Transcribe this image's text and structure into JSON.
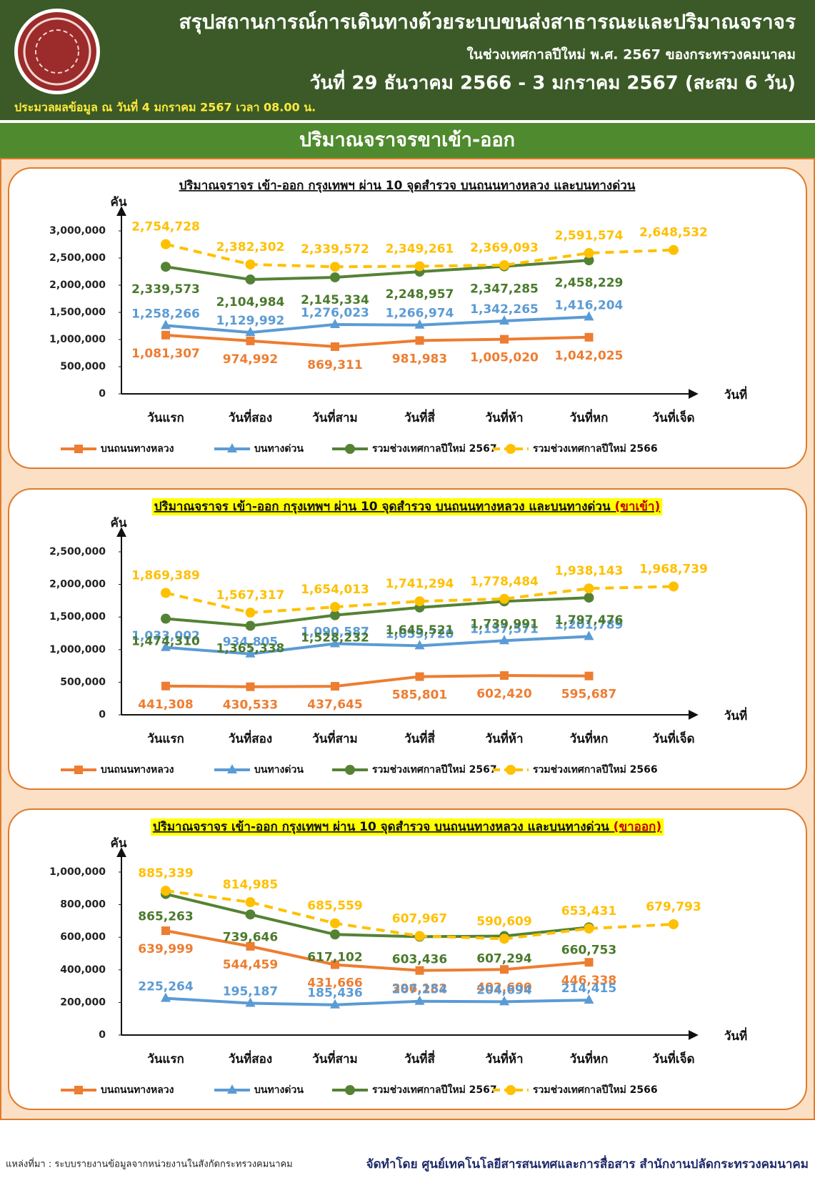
{
  "header": {
    "title": "สรุปสถานการณ์การเดินทางด้วยระบบขนส่งสาธารณะและปริมาณจราจร",
    "subtitle": "ในช่วงเทศกาลปีใหม่ พ.ศ. 2567 ของกระทรวงคมนาคม",
    "date_range": "วันที่ 29 ธันวาคม 2566 - 3 มกราคม 2567 (สะสม 6 วัน)",
    "processed": "ประมวลผลข้อมูล ณ วันที่ 4 มกราคม 2567 เวลา 08.00 น."
  },
  "section_title": "ปริมาณจราจรขาเข้า-ออก",
  "chart_data": [
    {
      "type": "line",
      "title": "ปริมาณจราจร เข้า-ออก กรุงเทพฯ ผ่าน 10 จุดสำรวจ บนถนนทางหลวง และบนทางด่วน",
      "y_label": "คัน",
      "x_label": "วันที่",
      "categories": [
        "วันแรก",
        "วันที่สอง",
        "วันที่สาม",
        "วันที่สี่",
        "วันที่ห้า",
        "วันที่หก",
        "วันที่เจ็ด"
      ],
      "ylim": [
        0,
        3000000
      ],
      "yticks": [
        0,
        {
          "value": 500000,
          "label": "500,000"
        },
        {
          "value": 1000000,
          "label": "1,000,000"
        },
        {
          "value": 1500000,
          "label": "1,500,000"
        },
        {
          "value": 2000000,
          "label": "2,000,000"
        },
        {
          "value": 2500000,
          "label": "2,500,000"
        },
        {
          "value": 3000000,
          "label": "3,000,000"
        }
      ],
      "series": [
        {
          "name": "บนถนนทางหลวง",
          "color": "#ed7d31",
          "marker": "square",
          "values": [
            1081307,
            974992,
            869311,
            981983,
            1005020,
            1042025,
            null
          ],
          "value_labels": [
            "1,081,307",
            "974,992",
            "869,311",
            "981,983",
            "1,005,020",
            "1,042,025",
            null
          ]
        },
        {
          "name": "บนทางด่วน",
          "color": "#5b9bd5",
          "marker": "triangle",
          "values": [
            1258266,
            1129992,
            1276023,
            1266974,
            1342265,
            1416204,
            null
          ],
          "value_labels": [
            "1,258,266",
            "1,129,992",
            "1,276,023",
            "1,266,974",
            "1,342,265",
            "1,416,204",
            null
          ]
        },
        {
          "name": "รวมช่วงเทศกาลปีใหม่ 2567",
          "color": "#548235",
          "marker": "circle",
          "values": [
            2339573,
            2104984,
            2145334,
            2248957,
            2347285,
            2458229,
            null
          ],
          "value_labels": [
            "2,339,573",
            "2,104,984",
            "2,145,334",
            "2,248,957",
            "2,347,285",
            "2,458,229",
            null
          ]
        },
        {
          "name": "รวมช่วงเทศกาลปีใหม่ 2566",
          "color": "#ffc000",
          "marker": "circle",
          "dashed": true,
          "values": [
            2754728,
            2382302,
            2339572,
            2349261,
            2369093,
            2591574,
            2648532
          ],
          "value_labels": [
            "2,754,728",
            "2,382,302",
            "2,339,572",
            "2,349,261",
            "2,369,093",
            "2,591,574",
            "2,648,532"
          ]
        }
      ]
    },
    {
      "type": "line",
      "title": "ปริมาณจราจร เข้า-ออก กรุงเทพฯ ผ่าน 10 จุดสำรวจ บนถนนทางหลวง และบนทางด่วน",
      "title_suffix": "(ขาเข้า)",
      "highlight": "#ffff00",
      "y_label": "คัน",
      "x_label": "วันที่",
      "categories": [
        "วันแรก",
        "วันที่สอง",
        "วันที่สาม",
        "วันที่สี่",
        "วันที่ห้า",
        "วันที่หก",
        "วันที่เจ็ด"
      ],
      "ylim": [
        0,
        2500000
      ],
      "yticks": [
        0,
        {
          "value": 500000,
          "label": "500,000"
        },
        {
          "value": 1000000,
          "label": "1,000,000"
        },
        {
          "value": 1500000,
          "label": "1,500,000"
        },
        {
          "value": 2000000,
          "label": "2,000,000"
        },
        {
          "value": 2500000,
          "label": "2,500,000"
        }
      ],
      "series": [
        {
          "name": "บนถนนทางหลวง",
          "color": "#ed7d31",
          "marker": "square",
          "values": [
            441308,
            430533,
            437645,
            585801,
            602420,
            595687,
            null
          ],
          "value_labels": [
            "441,308",
            "430,533",
            "437,645",
            "585,801",
            "602,420",
            "595,687",
            null
          ]
        },
        {
          "name": "บนทางด่วน",
          "color": "#5b9bd5",
          "marker": "triangle",
          "values": [
            1033002,
            934805,
            1090587,
            1059720,
            1137571,
            1201789,
            null
          ],
          "value_labels": [
            "1,033,002",
            "934,805",
            "1,090,587",
            "1,059,720",
            "1,137,571",
            "1,201,789",
            null
          ]
        },
        {
          "name": "รวมช่วงเทศกาลปีใหม่ 2567",
          "color": "#548235",
          "marker": "circle",
          "values": [
            1474310,
            1365338,
            1528232,
            1645521,
            1739991,
            1797476,
            null
          ],
          "value_labels": [
            "1,474,310",
            "1,365,338",
            "1,528,232",
            "1,645,521",
            "1,739,991",
            "1,797,476",
            null
          ]
        },
        {
          "name": "รวมช่วงเทศกาลปีใหม่ 2566",
          "color": "#ffc000",
          "marker": "circle",
          "dashed": true,
          "values": [
            1869389,
            1567317,
            1654013,
            1741294,
            1778484,
            1938143,
            1968739
          ],
          "value_labels": [
            "1,869,389",
            "1,567,317",
            "1,654,013",
            "1,741,294",
            "1,778,484",
            "1,938,143",
            "1,968,739"
          ]
        }
      ]
    },
    {
      "type": "line",
      "title": "ปริมาณจราจร เข้า-ออก กรุงเทพฯ ผ่าน 10 จุดสำรวจ บนถนนทางหลวง และบนทางด่วน",
      "title_suffix": "(ขาออก)",
      "highlight": "#ffff00",
      "y_label": "คัน",
      "x_label": "วันที่",
      "categories": [
        "วันแรก",
        "วันที่สอง",
        "วันที่สาม",
        "วันที่สี่",
        "วันที่ห้า",
        "วันที่หก",
        "วันที่เจ็ด"
      ],
      "ylim": [
        0,
        1000000
      ],
      "yticks": [
        0,
        {
          "value": 200000,
          "label": "200,000"
        },
        {
          "value": 400000,
          "label": "400,000"
        },
        {
          "value": 600000,
          "label": "600,000"
        },
        {
          "value": 800000,
          "label": "800,000"
        },
        {
          "value": 1000000,
          "label": "1,000,000"
        }
      ],
      "series": [
        {
          "name": "บนถนนทางหลวง",
          "color": "#ed7d31",
          "marker": "square",
          "values": [
            639999,
            544459,
            431666,
            396182,
            402600,
            446338,
            null
          ],
          "value_labels": [
            "639,999",
            "544,459",
            "431,666",
            "396,182",
            "402,600",
            "446,338",
            null
          ]
        },
        {
          "name": "บนทางด่วน",
          "color": "#5b9bd5",
          "marker": "triangle",
          "values": [
            225264,
            195187,
            185436,
            207254,
            204694,
            214415,
            null
          ],
          "value_labels": [
            "225,264",
            "195,187",
            "185,436",
            "207,254",
            "204,694",
            "214,415",
            null
          ]
        },
        {
          "name": "รวมช่วงเทศกาลปีใหม่ 2567",
          "color": "#548235",
          "marker": "circle",
          "values": [
            865263,
            739646,
            617102,
            603436,
            607294,
            660753,
            null
          ],
          "value_labels": [
            "865,263",
            "739,646",
            "617,102",
            "603,436",
            "607,294",
            "660,753",
            null
          ]
        },
        {
          "name": "รวมช่วงเทศกาลปีใหม่ 2566",
          "color": "#ffc000",
          "marker": "circle",
          "dashed": true,
          "values": [
            885339,
            814985,
            685559,
            607967,
            590609,
            653431,
            679793
          ],
          "value_labels": [
            "885,339",
            "814,985",
            "685,559",
            "607,967",
            "590,609",
            "653,431",
            "679,793"
          ]
        }
      ]
    }
  ],
  "footer": {
    "source": "แหล่งที่มา : ระบบรายงานข้อมูลจากหน่วยงานในสังกัดกระทรวงคมนาคม",
    "credit": "จัดทำโดย ศูนย์เทคโนโลยีสารสนเทศและการสื่อสาร สำนักงานปลัดกระทรวงคมนาคม"
  }
}
